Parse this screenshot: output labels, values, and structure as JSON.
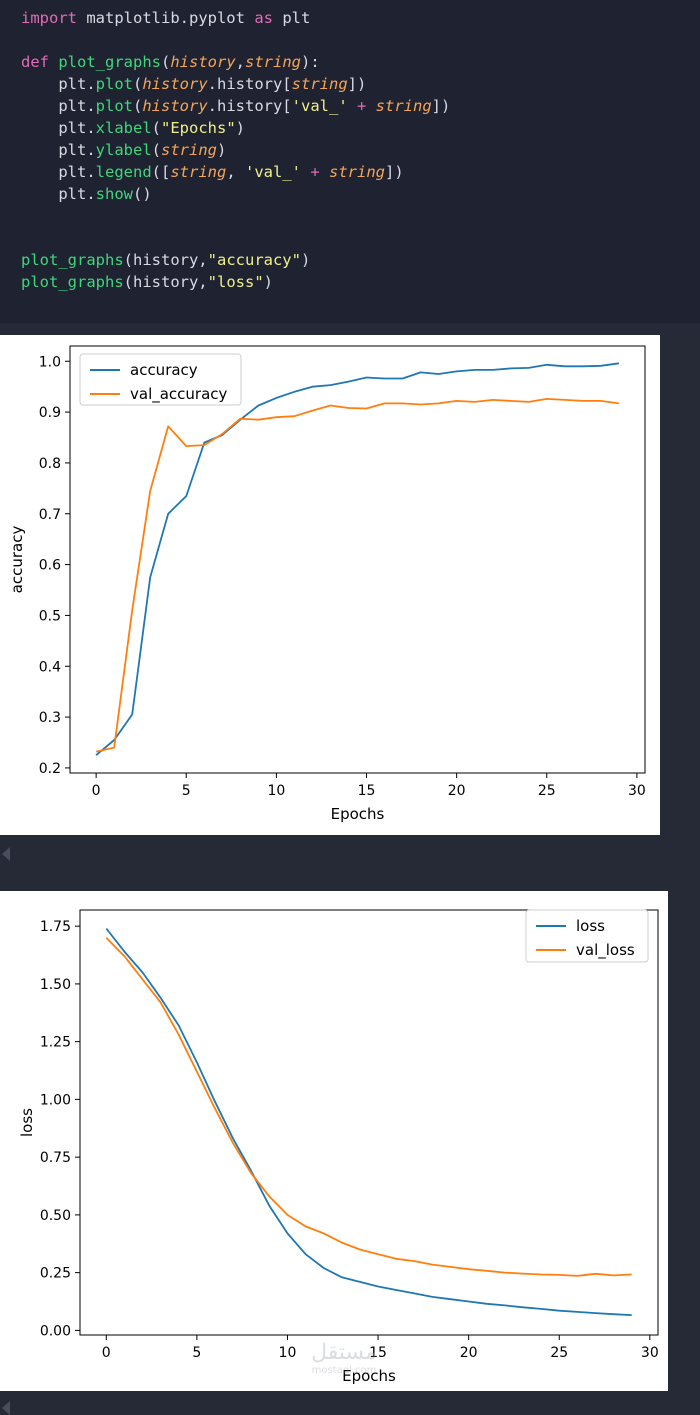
{
  "code": {
    "lines": [
      {
        "parts": [
          {
            "t": "import",
            "c": "kw"
          },
          {
            "t": " matplotlib.pyplot ",
            "c": ""
          },
          {
            "t": "as",
            "c": "kw"
          },
          {
            "t": " plt",
            "c": ""
          }
        ]
      },
      {
        "parts": []
      },
      {
        "parts": [
          {
            "t": "def",
            "c": "kw"
          },
          {
            "t": " ",
            "c": ""
          },
          {
            "t": "plot_graphs",
            "c": "fn"
          },
          {
            "t": "(",
            "c": ""
          },
          {
            "t": "history",
            "c": "arg"
          },
          {
            "t": ",",
            "c": ""
          },
          {
            "t": "string",
            "c": "arg"
          },
          {
            "t": "):",
            "c": ""
          }
        ]
      },
      {
        "parts": [
          {
            "t": "    plt.",
            "c": ""
          },
          {
            "t": "plot",
            "c": "fn"
          },
          {
            "t": "(",
            "c": ""
          },
          {
            "t": "history",
            "c": "arg"
          },
          {
            "t": ".history[",
            "c": ""
          },
          {
            "t": "string",
            "c": "arg"
          },
          {
            "t": "])",
            "c": ""
          }
        ]
      },
      {
        "parts": [
          {
            "t": "    plt.",
            "c": ""
          },
          {
            "t": "plot",
            "c": "fn"
          },
          {
            "t": "(",
            "c": ""
          },
          {
            "t": "history",
            "c": "arg"
          },
          {
            "t": ".history[",
            "c": ""
          },
          {
            "t": "'val_'",
            "c": "str"
          },
          {
            "t": " + ",
            "c": "kw"
          },
          {
            "t": "string",
            "c": "arg"
          },
          {
            "t": "])",
            "c": ""
          }
        ]
      },
      {
        "parts": [
          {
            "t": "    plt.",
            "c": ""
          },
          {
            "t": "xlabel",
            "c": "fn"
          },
          {
            "t": "(",
            "c": ""
          },
          {
            "t": "\"Epochs\"",
            "c": "str"
          },
          {
            "t": ")",
            "c": ""
          }
        ]
      },
      {
        "parts": [
          {
            "t": "    plt.",
            "c": ""
          },
          {
            "t": "ylabel",
            "c": "fn"
          },
          {
            "t": "(",
            "c": ""
          },
          {
            "t": "string",
            "c": "arg"
          },
          {
            "t": ")",
            "c": ""
          }
        ]
      },
      {
        "parts": [
          {
            "t": "    plt.",
            "c": ""
          },
          {
            "t": "legend",
            "c": "fn"
          },
          {
            "t": "([",
            "c": ""
          },
          {
            "t": "string",
            "c": "arg"
          },
          {
            "t": ", ",
            "c": ""
          },
          {
            "t": "'val_'",
            "c": "str"
          },
          {
            "t": " + ",
            "c": "kw"
          },
          {
            "t": "string",
            "c": "arg"
          },
          {
            "t": "])",
            "c": ""
          }
        ]
      },
      {
        "parts": [
          {
            "t": "    plt.",
            "c": ""
          },
          {
            "t": "show",
            "c": "fn"
          },
          {
            "t": "()",
            "c": ""
          }
        ]
      },
      {
        "parts": []
      },
      {
        "parts": []
      },
      {
        "parts": [
          {
            "t": "plot_graphs",
            "c": "fn"
          },
          {
            "t": "(history,",
            "c": ""
          },
          {
            "t": "\"accuracy\"",
            "c": "str"
          },
          {
            "t": ")",
            "c": ""
          }
        ]
      },
      {
        "parts": [
          {
            "t": "plot_graphs",
            "c": "fn"
          },
          {
            "t": "(history,",
            "c": ""
          },
          {
            "t": "\"loss\"",
            "c": "str"
          },
          {
            "t": ")",
            "c": ""
          }
        ]
      }
    ]
  },
  "colors": {
    "series1": "#1f77b4",
    "series2": "#ff7f0e",
    "code_bg": "#1f2230",
    "page_bg": "#262a37"
  },
  "chart_data": [
    {
      "type": "line",
      "xlabel": "Epochs",
      "ylabel": "accuracy",
      "xlim": [
        -1.45,
        30.45
      ],
      "ylim": [
        0.19,
        1.03
      ],
      "xticks": [
        0,
        5,
        10,
        15,
        20,
        25,
        30
      ],
      "xtick_labels": [
        "0",
        "5",
        "10",
        "15",
        "20",
        "25",
        "30"
      ],
      "yticks": [
        0.2,
        0.3,
        0.4,
        0.5,
        0.6,
        0.7,
        0.8,
        0.9,
        1.0
      ],
      "ytick_labels": [
        "0.2",
        "0.3",
        "0.4",
        "0.5",
        "0.6",
        "0.7",
        "0.8",
        "0.9",
        "1.0"
      ],
      "legend_position": "upper left",
      "x": [
        0,
        1,
        2,
        3,
        4,
        5,
        6,
        7,
        8,
        9,
        10,
        11,
        12,
        13,
        14,
        15,
        16,
        17,
        18,
        19,
        20,
        21,
        22,
        23,
        24,
        25,
        26,
        27,
        28,
        29
      ],
      "series": [
        {
          "name": "accuracy",
          "values": [
            0.225,
            0.255,
            0.305,
            0.575,
            0.7,
            0.735,
            0.84,
            0.855,
            0.885,
            0.913,
            0.928,
            0.94,
            0.95,
            0.953,
            0.96,
            0.968,
            0.966,
            0.966,
            0.978,
            0.975,
            0.98,
            0.983,
            0.983,
            0.986,
            0.987,
            0.993,
            0.99,
            0.99,
            0.991,
            0.996
          ]
        },
        {
          "name": "val_accuracy",
          "values": [
            0.232,
            0.24,
            0.51,
            0.745,
            0.872,
            0.833,
            0.835,
            0.857,
            0.887,
            0.885,
            0.89,
            0.892,
            0.903,
            0.913,
            0.908,
            0.907,
            0.917,
            0.917,
            0.915,
            0.917,
            0.922,
            0.92,
            0.924,
            0.922,
            0.92,
            0.926,
            0.924,
            0.922,
            0.922,
            0.917
          ]
        }
      ]
    },
    {
      "type": "line",
      "xlabel": "Epochs",
      "ylabel": "loss",
      "xlim": [
        -1.45,
        30.45
      ],
      "ylim": [
        -0.02,
        1.82
      ],
      "xticks": [
        0,
        5,
        10,
        15,
        20,
        25,
        30
      ],
      "xtick_labels": [
        "0",
        "5",
        "10",
        "15",
        "20",
        "25",
        "30"
      ],
      "yticks": [
        0.0,
        0.25,
        0.5,
        0.75,
        1.0,
        1.25,
        1.5,
        1.75
      ],
      "ytick_labels": [
        "0.00",
        "0.25",
        "0.50",
        "0.75",
        "1.00",
        "1.25",
        "1.50",
        "1.75"
      ],
      "legend_position": "upper right",
      "x": [
        0,
        1,
        2,
        3,
        4,
        5,
        6,
        7,
        8,
        9,
        10,
        11,
        12,
        13,
        14,
        15,
        16,
        17,
        18,
        19,
        20,
        21,
        22,
        23,
        24,
        25,
        26,
        27,
        28,
        29
      ],
      "series": [
        {
          "name": "loss",
          "values": [
            1.74,
            1.64,
            1.55,
            1.44,
            1.32,
            1.16,
            0.99,
            0.83,
            0.69,
            0.54,
            0.42,
            0.33,
            0.27,
            0.23,
            0.21,
            0.19,
            0.175,
            0.16,
            0.145,
            0.135,
            0.125,
            0.115,
            0.108,
            0.1,
            0.093,
            0.085,
            0.08,
            0.075,
            0.07,
            0.066
          ]
        },
        {
          "name": "val_loss",
          "values": [
            1.7,
            1.62,
            1.52,
            1.42,
            1.28,
            1.12,
            0.96,
            0.81,
            0.68,
            0.58,
            0.5,
            0.45,
            0.42,
            0.38,
            0.35,
            0.33,
            0.31,
            0.3,
            0.285,
            0.275,
            0.265,
            0.258,
            0.25,
            0.246,
            0.242,
            0.24,
            0.236,
            0.245,
            0.238,
            0.242
          ]
        }
      ]
    }
  ],
  "watermark": {
    "arabic": "مستقل",
    "latin": "mostaql.com"
  }
}
